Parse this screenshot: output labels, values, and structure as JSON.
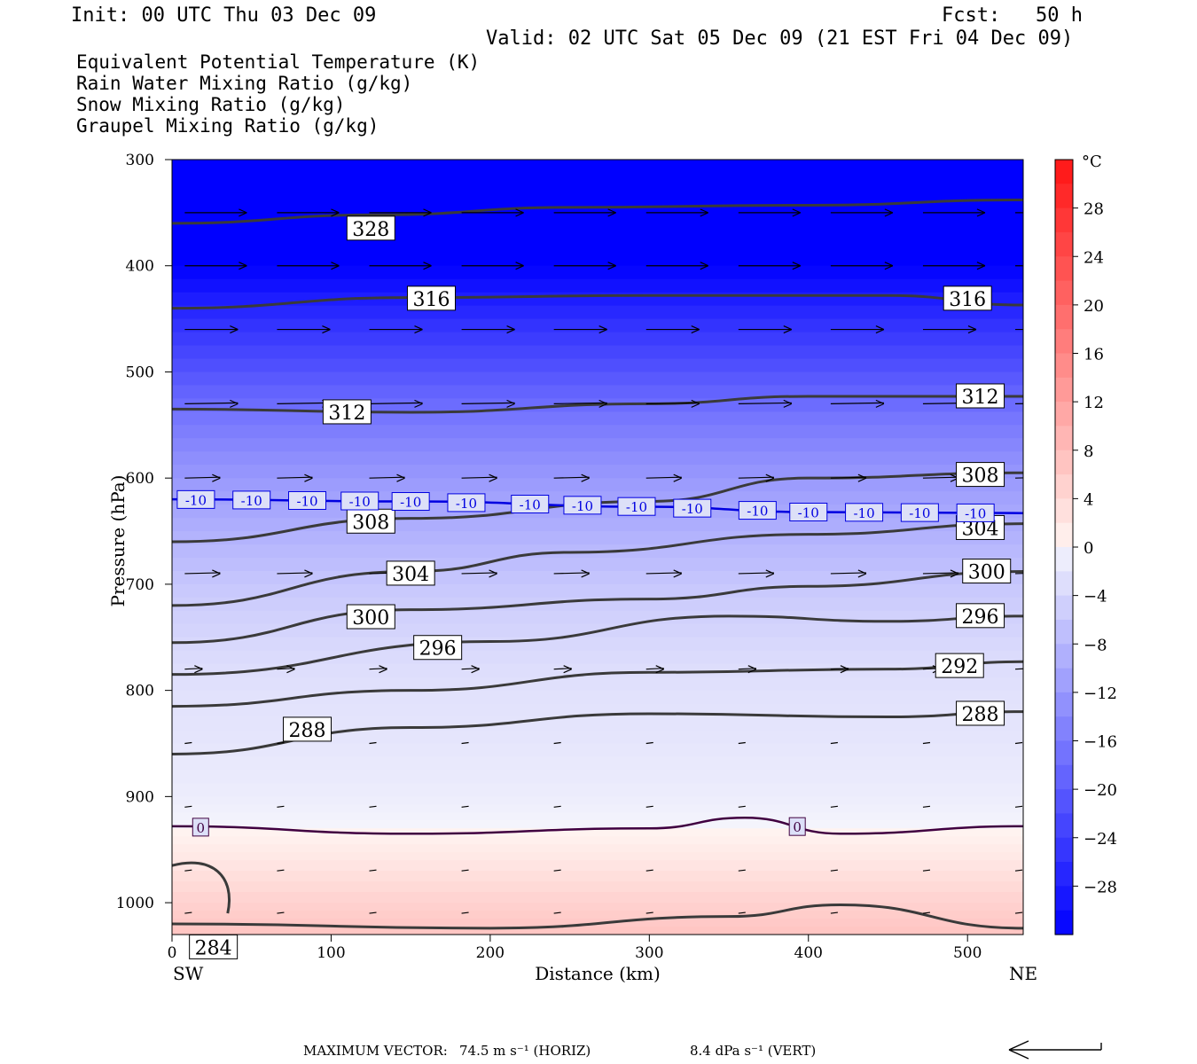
{
  "header": {
    "init": "Init: 00 UTC Thu 03 Dec 09",
    "fcst_label": "Fcst:",
    "fcst_value": "50 h",
    "valid": "Valid: 02 UTC Sat 05 Dec 09 (21 EST Fri 04 Dec 09)"
  },
  "legend": [
    {
      "label": "Equivalent Potential Temperature (K)",
      "color": "#404040"
    },
    {
      "label": "Rain Water Mixing Ratio (g/kg)",
      "color": "#007a00"
    },
    {
      "label": "Snow Mixing Ratio (g/kg)",
      "color": "#f08850"
    },
    {
      "label": "Graupel Mixing Ratio (g/kg)",
      "color": "#f070e0"
    }
  ],
  "footer": {
    "max_vector_label": "MAXIMUM VECTOR:",
    "horiz": "74.5 m s⁻¹ (HORIZ)",
    "vert": "8.4 dPa s⁻¹ (VERT)"
  },
  "chart_data": {
    "type": "heatmap",
    "xlabel": "Distance (km)",
    "ylabel": "Pressure (hPa)",
    "xlim": [
      0,
      535
    ],
    "ylim": [
      1030,
      300
    ],
    "y_scale": "linear (inverted)",
    "xticks": [
      0,
      100,
      200,
      300,
      400,
      500
    ],
    "yticks": [
      300,
      400,
      500,
      600,
      700,
      800,
      900,
      1000
    ],
    "x_end_labels": {
      "left": "SW",
      "right": "NE"
    },
    "colorbar": {
      "unit": "°C",
      "ticks": [
        28,
        24,
        20,
        16,
        12,
        8,
        4,
        0,
        -4,
        -8,
        -12,
        -16,
        -20,
        -24,
        -28
      ],
      "range": [
        -32,
        32
      ]
    },
    "temperature_field": [
      {
        "p": 300,
        "t": -44
      },
      {
        "p": 350,
        "t": -38
      },
      {
        "p": 400,
        "t": -32
      },
      {
        "p": 450,
        "t": -26
      },
      {
        "p": 500,
        "t": -21
      },
      {
        "p": 550,
        "t": -16
      },
      {
        "p": 600,
        "t": -12
      },
      {
        "p": 650,
        "t": -9
      },
      {
        "p": 700,
        "t": -6
      },
      {
        "p": 750,
        "t": -4
      },
      {
        "p": 800,
        "t": -2.5
      },
      {
        "p": 850,
        "t": -2
      },
      {
        "p": 900,
        "t": -1
      },
      {
        "p": 930,
        "t": 0
      },
      {
        "p": 960,
        "t": 2
      },
      {
        "p": 1000,
        "t": 5
      },
      {
        "p": 1030,
        "t": 7
      }
    ],
    "theta_e_contours": [
      {
        "label": "328",
        "points": [
          [
            0,
            360
          ],
          [
            130,
            352
          ],
          [
            250,
            345
          ],
          [
            400,
            343
          ],
          [
            535,
            338
          ]
        ],
        "label_at": [
          125,
          365
        ]
      },
      {
        "label": "316",
        "points": [
          [
            0,
            440
          ],
          [
            150,
            430
          ],
          [
            300,
            428
          ],
          [
            450,
            428
          ],
          [
            535,
            437
          ]
        ],
        "label_at": [
          163,
          431
        ],
        "label2_at": [
          500,
          431
        ]
      },
      {
        "label": "312",
        "points": [
          [
            0,
            535
          ],
          [
            150,
            538
          ],
          [
            300,
            530
          ],
          [
            400,
            523
          ],
          [
            535,
            523
          ]
        ],
        "label_at": [
          110,
          538
        ],
        "label2_at": [
          508,
          523
        ]
      },
      {
        "label": "308",
        "points": [
          [
            0,
            660
          ],
          [
            150,
            638
          ],
          [
            300,
            622
          ],
          [
            400,
            600
          ],
          [
            535,
            595
          ]
        ],
        "label_at": [
          125,
          641
        ],
        "label2_at": [
          508,
          597
        ]
      },
      {
        "label": "304",
        "points": [
          [
            0,
            720
          ],
          [
            150,
            688
          ],
          [
            250,
            670
          ],
          [
            400,
            653
          ],
          [
            535,
            643
          ]
        ],
        "label_at": [
          150,
          690
        ],
        "label2_at": [
          508,
          647
        ]
      },
      {
        "label": "300",
        "points": [
          [
            0,
            755
          ],
          [
            150,
            724
          ],
          [
            300,
            714
          ],
          [
            400,
            702
          ],
          [
            535,
            688
          ]
        ],
        "label_at": [
          125,
          731
        ],
        "label2_at": [
          512,
          688
        ]
      },
      {
        "label": "296",
        "points": [
          [
            0,
            785
          ],
          [
            200,
            754
          ],
          [
            350,
            730
          ],
          [
            450,
            735
          ],
          [
            535,
            730
          ]
        ],
        "label_at": [
          167,
          760
        ],
        "label2_at": [
          508,
          730
        ]
      },
      {
        "label": "292",
        "points": [
          [
            0,
            815
          ],
          [
            150,
            800
          ],
          [
            300,
            783
          ],
          [
            450,
            780
          ],
          [
            535,
            773
          ]
        ],
        "label_at": [
          495,
          777
        ]
      },
      {
        "label": "288",
        "points": [
          [
            0,
            860
          ],
          [
            150,
            835
          ],
          [
            300,
            822
          ],
          [
            450,
            825
          ],
          [
            535,
            820
          ]
        ],
        "label_at": [
          85,
          837
        ],
        "label2_at": [
          508,
          822
        ]
      },
      {
        "label": "284",
        "points": [
          [
            0,
            1020
          ],
          [
            200,
            1024
          ],
          [
            350,
            1013
          ],
          [
            420,
            1002
          ],
          [
            535,
            1024
          ]
        ],
        "label_at": [
          26,
          1042
        ]
      }
    ],
    "isotherms": [
      {
        "label": "-10",
        "color": "#0000e0",
        "points": [
          [
            0,
            620
          ],
          [
            150,
            622
          ],
          [
            300,
            627
          ],
          [
            400,
            632
          ],
          [
            535,
            633
          ]
        ],
        "label_xs": [
          15,
          50,
          85,
          118,
          150,
          185,
          225,
          258,
          292,
          327,
          368,
          400,
          435,
          470,
          505
        ]
      },
      {
        "label": "0",
        "color": "#400040",
        "points": [
          [
            0,
            928
          ],
          [
            150,
            935
          ],
          [
            300,
            930
          ],
          [
            360,
            920
          ],
          [
            420,
            935
          ],
          [
            535,
            928
          ]
        ],
        "label_xs": [
          18,
          393
        ]
      }
    ]
  }
}
